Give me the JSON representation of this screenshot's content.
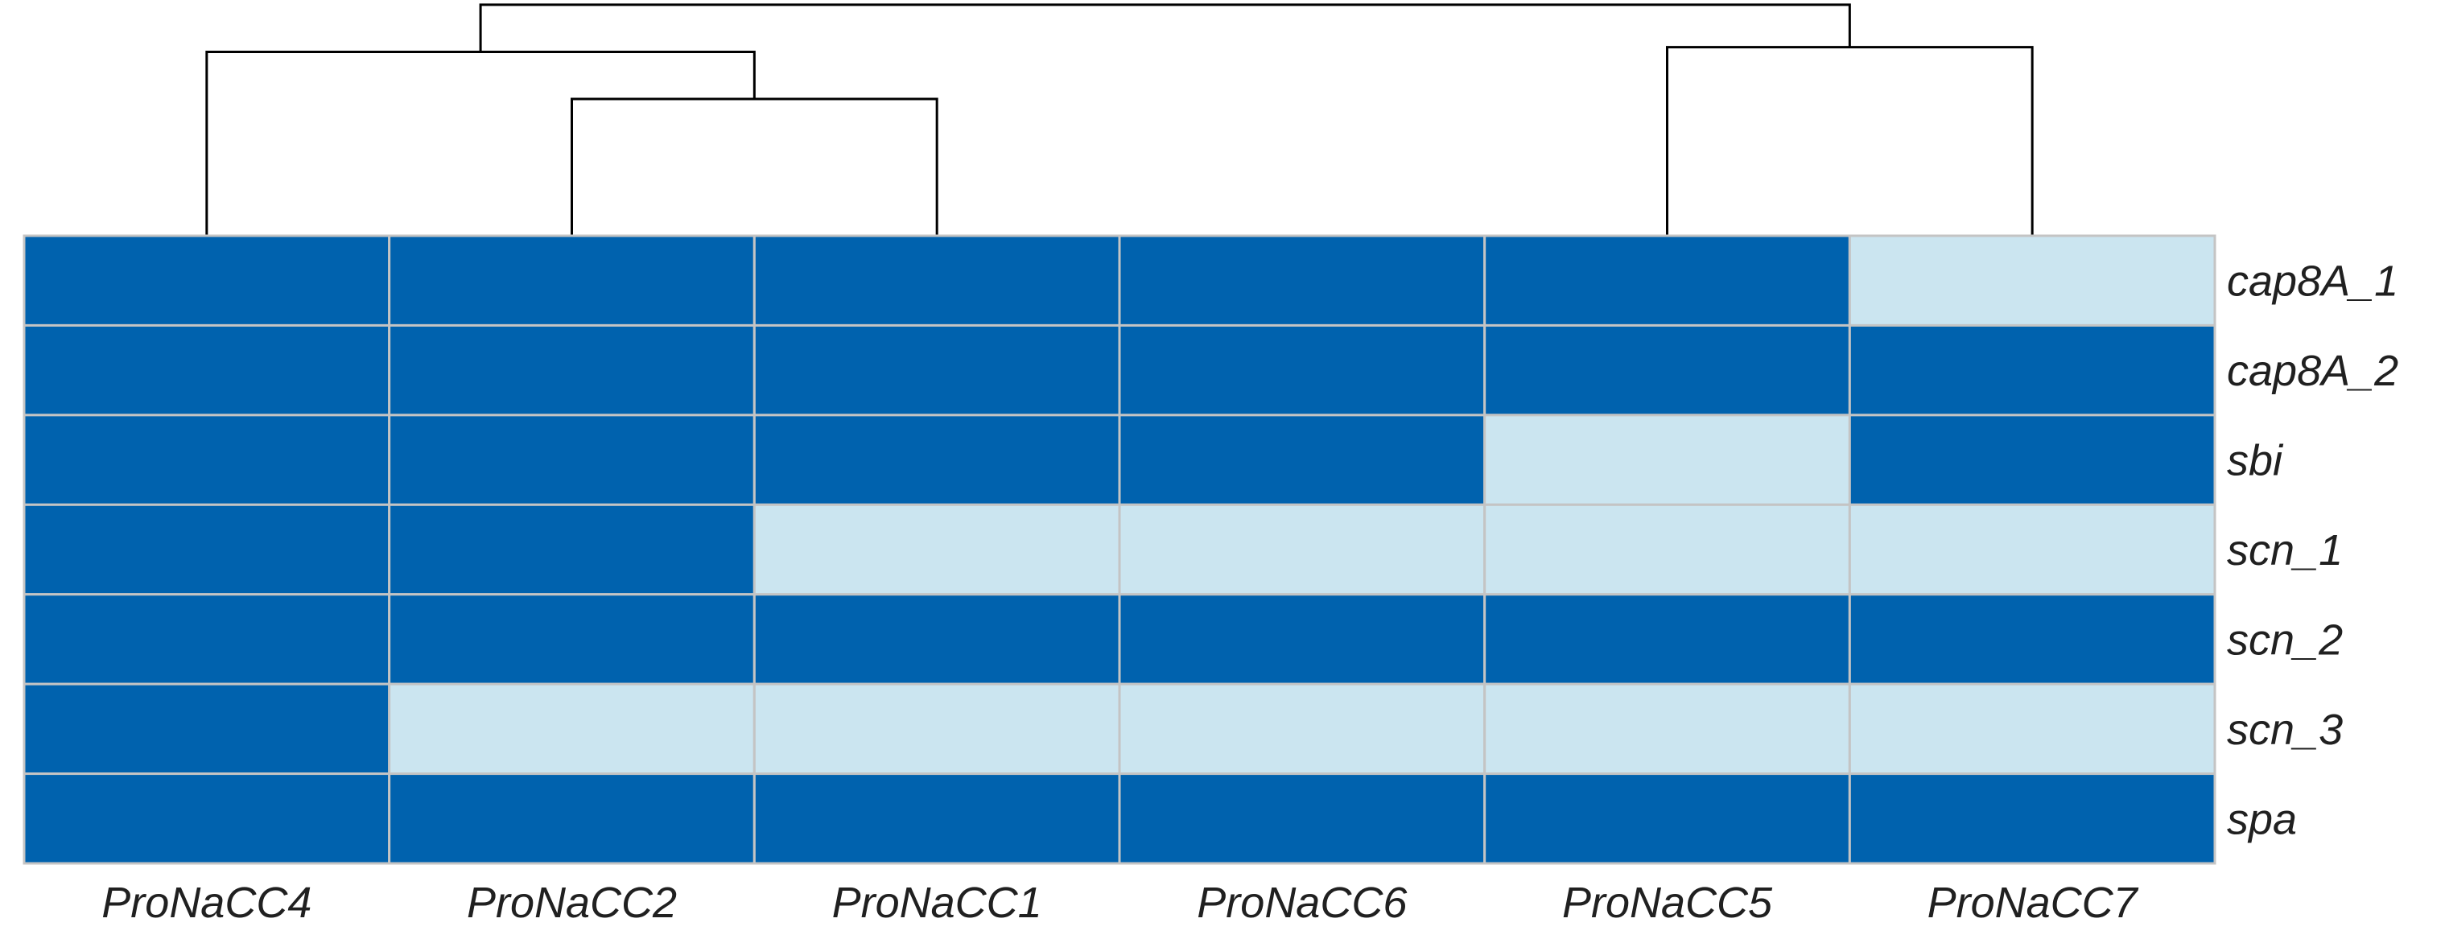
{
  "chart_data": {
    "type": "heatmap",
    "title": "",
    "columns": [
      "ProNaCC4",
      "ProNaCC2",
      "ProNaCC1",
      "ProNaCC6",
      "ProNaCC5",
      "ProNaCC7"
    ],
    "rows": [
      "cap8A_1",
      "cap8A_2",
      "sbi",
      "scn_1",
      "scn_2",
      "scn_3",
      "spa"
    ],
    "values": [
      [
        1,
        1,
        1,
        1,
        1,
        0
      ],
      [
        1,
        1,
        1,
        1,
        1,
        1
      ],
      [
        1,
        1,
        1,
        1,
        0,
        1
      ],
      [
        1,
        1,
        0,
        0,
        0,
        0
      ],
      [
        1,
        1,
        1,
        1,
        1,
        1
      ],
      [
        1,
        0,
        0,
        0,
        0,
        0
      ],
      [
        1,
        1,
        1,
        1,
        1,
        1
      ]
    ],
    "value_colors": {
      "1": "#0062ae",
      "0": "#cbe5f0"
    },
    "grid_color": "#c4c4c4",
    "column_dendrogram": {
      "merges": [
        {
          "children": [
            "ProNaCC2",
            "ProNaCC1"
          ],
          "height": 0.58
        },
        {
          "children": [
            "ProNaCC4",
            [
              "ProNaCC2",
              "ProNaCC1"
            ]
          ],
          "height": 0.78
        },
        {
          "children": [
            "ProNaCC5",
            "ProNaCC7"
          ],
          "height": 0.8
        },
        {
          "children": [
            [
              "ProNaCC4",
              [
                "ProNaCC2",
                "ProNaCC1"
              ]
            ],
            [
              "ProNaCC5",
              "ProNaCC7"
            ]
          ],
          "height": 0.98
        }
      ]
    }
  }
}
